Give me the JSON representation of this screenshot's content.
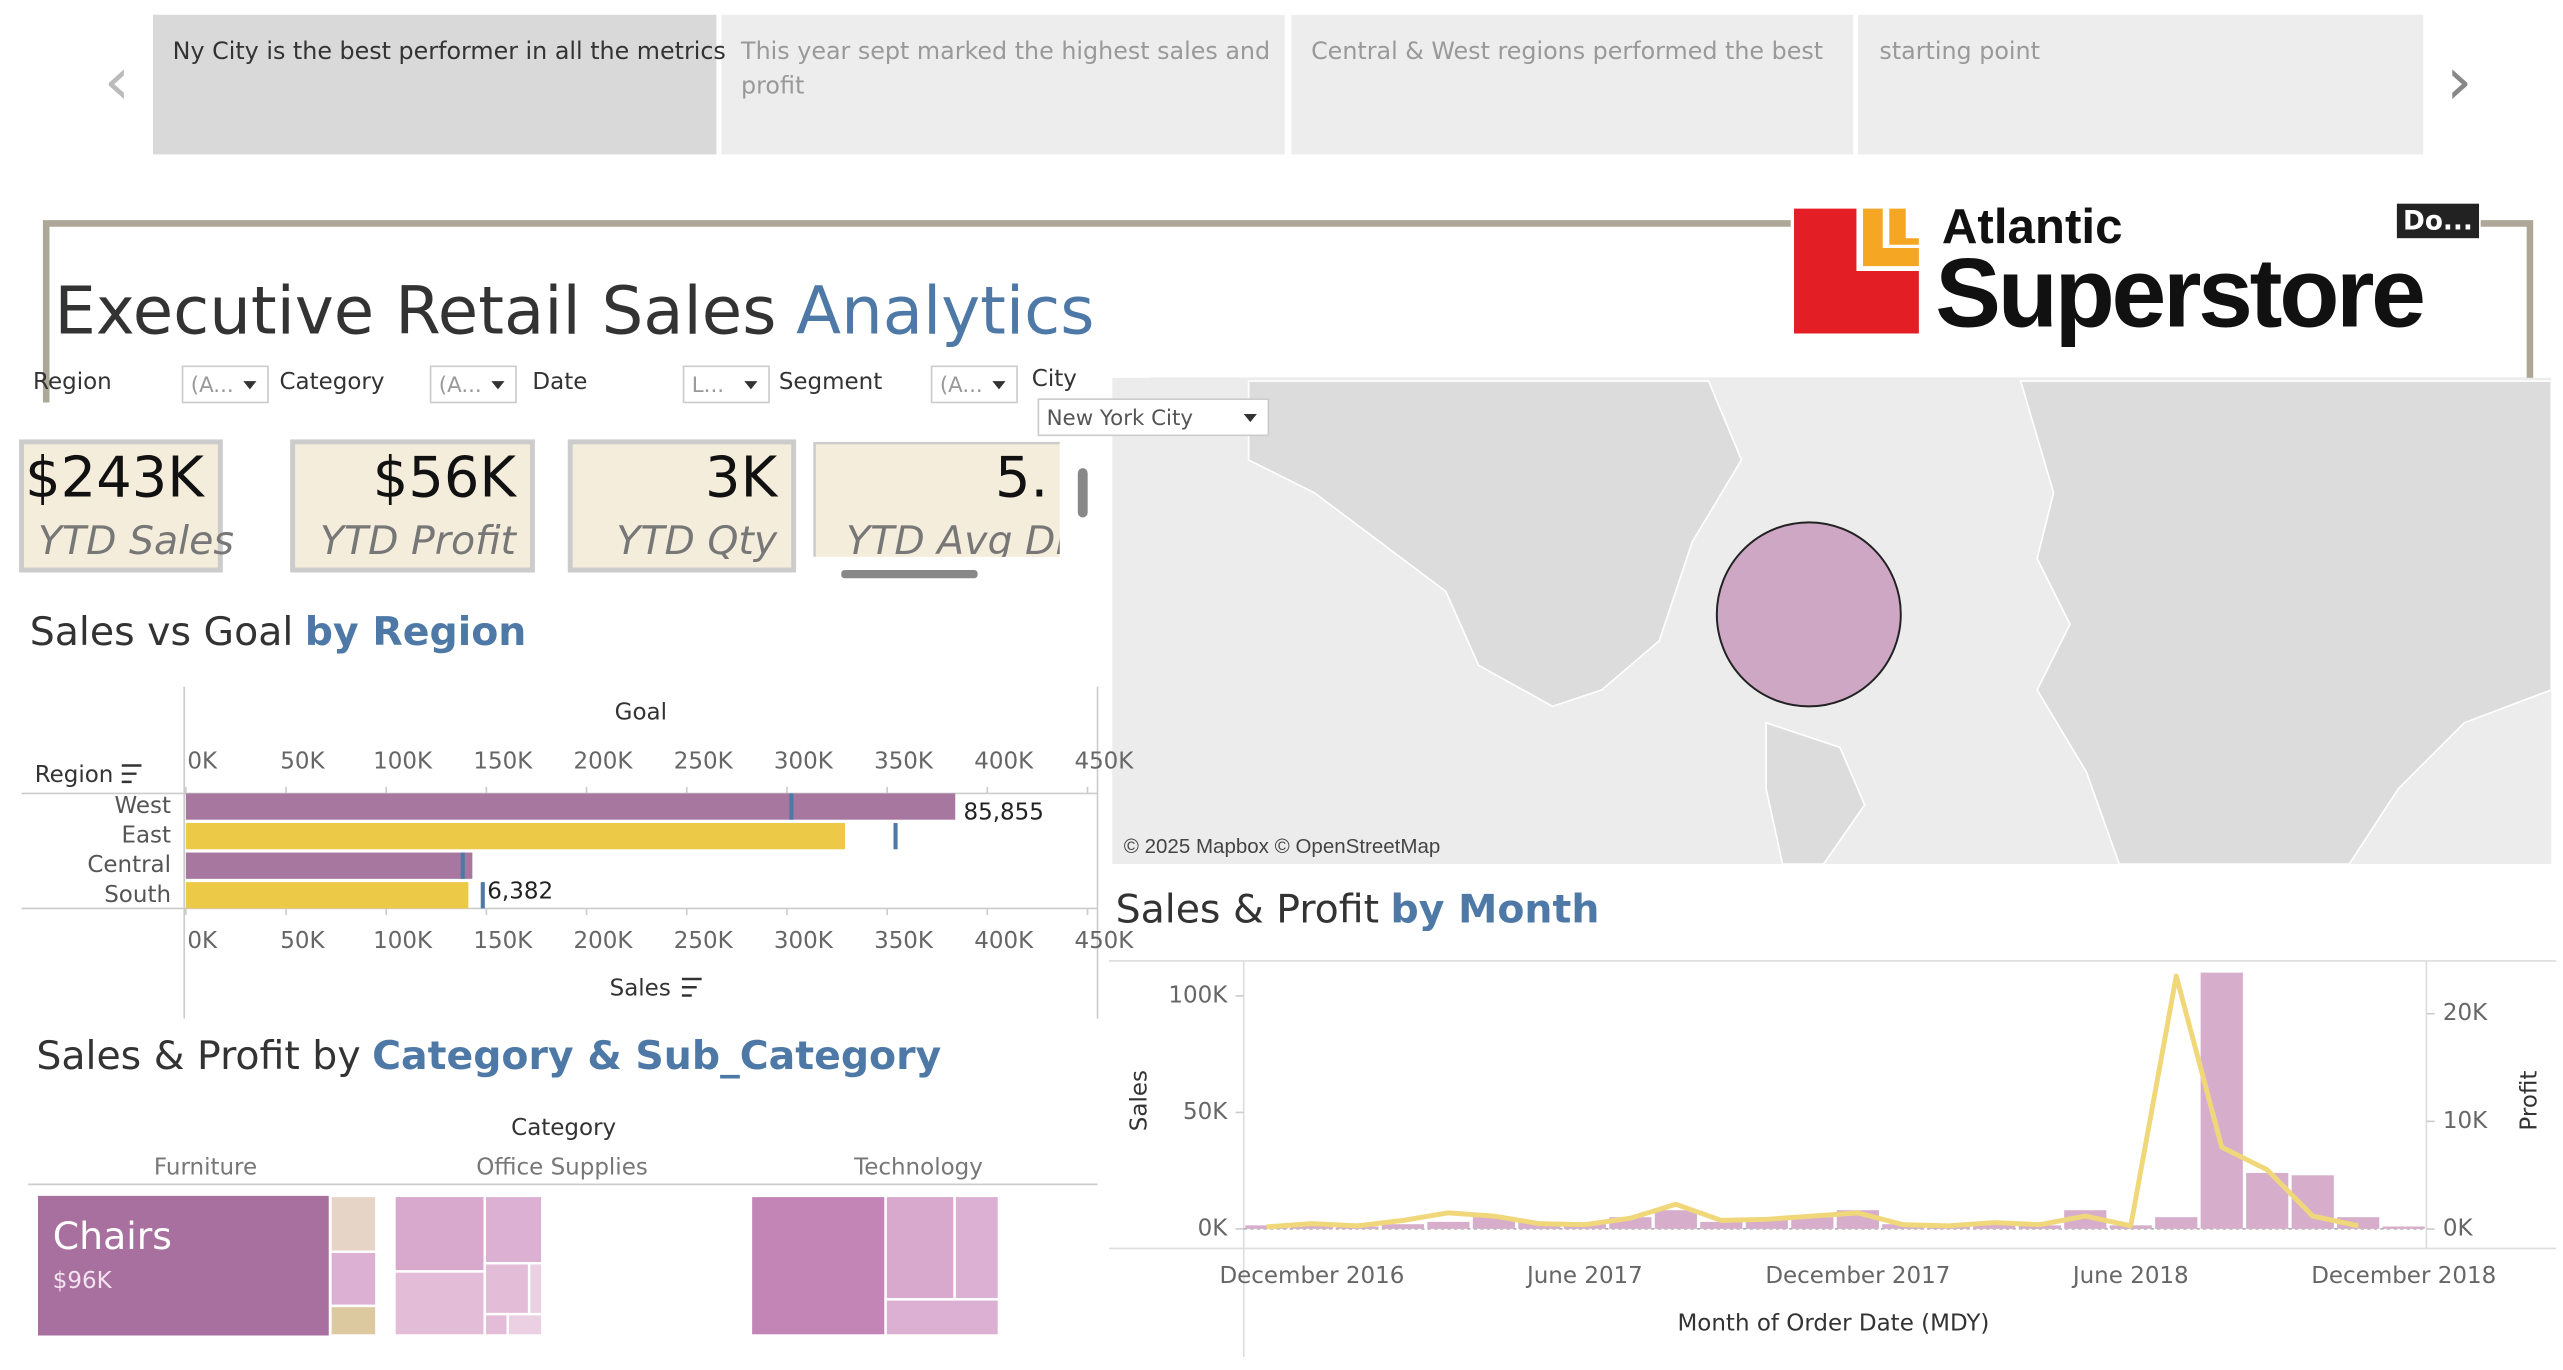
{
  "story_points": [
    "Ny City is the best performer in all the metrics",
    "This year sept marked the highest sales and",
    "profit",
    "Central & West regions performed the best",
    "starting point"
  ],
  "header": {
    "title": "Executive Retail Sales",
    "title_highlight": "Analytics",
    "logo_top": "Atlantic",
    "logo_main": "Superstore",
    "download": "Do..."
  },
  "filters": [
    {
      "label": "Region",
      "value": "(A..."
    },
    {
      "label": "Category",
      "value": "(A..."
    },
    {
      "label": "Date",
      "value": "L..."
    },
    {
      "label": "Segment",
      "value": "(A..."
    },
    {
      "label": "City",
      "value": "New York City"
    }
  ],
  "kpis": [
    {
      "value": "$243K",
      "label": "YTD Sales"
    },
    {
      "value": "$56K",
      "label": "YTD Profit"
    },
    {
      "value": "3K",
      "label": "YTD Qty"
    },
    {
      "value": "5.",
      "label": "YTD Avg Dis"
    }
  ],
  "map": {
    "attribution": "© 2025 Mapbox © OpenStreetMap"
  },
  "charts": [
    {
      "type": "bar",
      "title": "Sales vs Goal",
      "title_highlight": "by Region",
      "row_header": "Region",
      "x_title_top": "Goal",
      "x_title": "Sales",
      "categories": [
        "West",
        "East",
        "Central",
        "South"
      ],
      "series": [
        {
          "name": "Sales",
          "values": [
            384000,
            329000,
            143000,
            141000
          ]
        },
        {
          "name": "Goal",
          "color": "#4e79a7",
          "values": [
            302000,
            354000,
            138000,
            148000
          ]
        }
      ],
      "bar_colors": [
        "#a8779f",
        "#edc948",
        "#a8779f",
        "#edc948"
      ],
      "annotations": [
        "85,855",
        "6,382"
      ],
      "xlim": [
        0,
        455000
      ],
      "xticks": [
        {
          "value": 0,
          "label": "0K"
        },
        {
          "value": 50000,
          "label": "50K"
        },
        {
          "value": 100000,
          "label": "100K"
        },
        {
          "value": 150000,
          "label": "150K"
        },
        {
          "value": 200000,
          "label": "200K"
        },
        {
          "value": 250000,
          "label": "250K"
        },
        {
          "value": 300000,
          "label": "300K"
        },
        {
          "value": 350000,
          "label": "350K"
        },
        {
          "value": 400000,
          "label": "400K"
        },
        {
          "value": 450000,
          "label": "450K"
        }
      ]
    },
    {
      "type": "bar_line",
      "title": "Sales & Profit",
      "title_highlight": "by Month",
      "xlabel": "Month of Order Date (MDY)",
      "ylabel": "Sales",
      "y2label": "Profit",
      "categories": [
        null,
        "December 2016",
        null,
        null,
        null,
        null,
        null,
        "June 2017",
        null,
        null,
        null,
        null,
        null,
        "December 2017",
        null,
        null,
        null,
        null,
        null,
        "June 2018",
        null,
        null,
        null,
        null,
        null,
        "December 2018"
      ],
      "series": [
        {
          "name": "Sales",
          "type": "bar",
          "color": "#d6aecb",
          "values": [
            1500,
            2500,
            1000,
            2000,
            3000,
            5000,
            3000,
            2000,
            5000,
            8000,
            3000,
            4000,
            5000,
            8000,
            2000,
            1500,
            2000,
            1500,
            8000,
            1500,
            5000,
            110000,
            24000,
            23000,
            5000,
            1000
          ]
        },
        {
          "name": "Profit",
          "type": "line",
          "axis": "y2",
          "color": "#f0d77a",
          "values": [
            200,
            500,
            300,
            800,
            1500,
            1200,
            500,
            400,
            1000,
            2300,
            800,
            900,
            1200,
            1500,
            400,
            300,
            600,
            400,
            1200,
            300,
            23500,
            7600,
            5500,
            1200,
            300,
            null
          ]
        }
      ],
      "ylim": [
        -7000,
        115000
      ],
      "yticks": [
        {
          "value": 0,
          "label": "0K"
        },
        {
          "value": 50000,
          "label": "50K"
        },
        {
          "value": 100000,
          "label": "100K"
        }
      ],
      "y2lim": [
        -1500,
        24900
      ],
      "y2ticks": [
        {
          "value": 0,
          "label": "0K"
        },
        {
          "value": 10000,
          "label": "10K"
        },
        {
          "value": 20000,
          "label": "20K"
        }
      ]
    },
    {
      "type": "treemap",
      "title": "Sales & Profit by",
      "title_highlight": "Category & Sub_Category",
      "header": "Category",
      "groups": [
        "Furniture",
        "Office Supplies",
        "Technology"
      ],
      "label": "Chairs",
      "value": 96000,
      "value_label": "$96K",
      "color": "#a8709e"
    }
  ]
}
